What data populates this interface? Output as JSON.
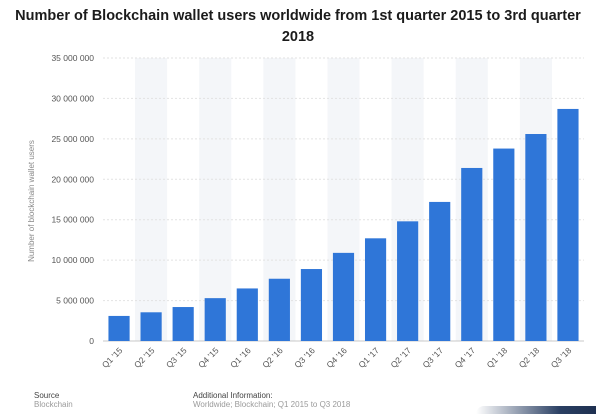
{
  "chart_data": {
    "type": "bar",
    "title": "Number of Blockchain wallet users worldwide from 1st quarter 2015 to 3rd quarter 2018",
    "xlabel": "",
    "ylabel": "Number of blockchain wallet users",
    "ylim": [
      0,
      35000000
    ],
    "yticks": [
      0,
      5000000,
      10000000,
      15000000,
      20000000,
      25000000,
      30000000,
      35000000
    ],
    "ytick_labels": [
      "0",
      "5 000 000",
      "10 000 000",
      "15 000 000",
      "20 000 000",
      "25 000 000",
      "30 000 000",
      "35 000 000"
    ],
    "categories": [
      "Q1 '15",
      "Q2 '15",
      "Q3 '15",
      "Q4 '15",
      "Q1 '16",
      "Q2 '16",
      "Q3 '16",
      "Q4 '16",
      "Q1 '17",
      "Q2 '17",
      "Q3 '17",
      "Q4 '17",
      "Q1 '18",
      "Q2 '18",
      "Q3 '18"
    ],
    "values": [
      3100000,
      3550000,
      4200000,
      5300000,
      6500000,
      7700000,
      8900000,
      10900000,
      12700000,
      14800000,
      17200000,
      21400000,
      23800000,
      25600000,
      28700000
    ],
    "grid": true,
    "bar_color": "#2f76d8"
  },
  "footer": {
    "source_label": "Source",
    "source_value": "Blockchain",
    "info_label": "Additional Information:",
    "info_value": "Worldwide; Blockchain; Q1 2015 to Q3 2018"
  }
}
